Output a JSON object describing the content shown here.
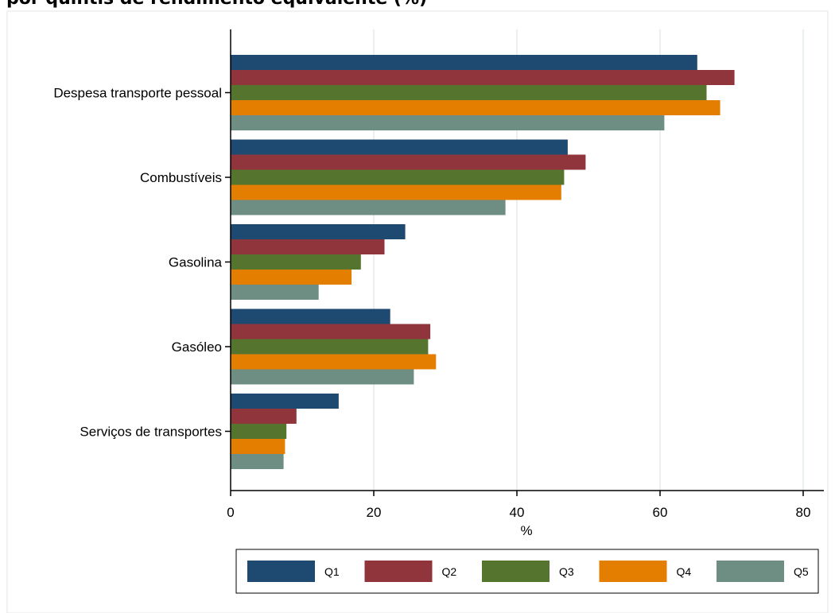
{
  "title": "por quintis de rendimento equivalente (%)",
  "chart_data": {
    "type": "bar",
    "orientation": "horizontal",
    "title": "por quintis de rendimento equivalente (%)",
    "xlabel": "%",
    "ylabel": "",
    "xlim": [
      0,
      83
    ],
    "xticks": [
      0,
      20,
      40,
      60,
      80
    ],
    "grid": true,
    "legend_position": "bottom",
    "categories": [
      "Despesa transporte pessoal",
      "Combustíveis",
      "Gasolina",
      "Gasóleo",
      "Serviços de transportes"
    ],
    "series": [
      {
        "name": "Q1",
        "color": "#1e4a72",
        "values": [
          65.2,
          47.1,
          24.4,
          22.3,
          15.1
        ]
      },
      {
        "name": "Q2",
        "color": "#90353b",
        "values": [
          70.4,
          49.6,
          21.5,
          27.9,
          9.2
        ]
      },
      {
        "name": "Q3",
        "color": "#55752f",
        "values": [
          66.5,
          46.6,
          18.2,
          27.6,
          7.8
        ]
      },
      {
        "name": "Q4",
        "color": "#e37e00",
        "values": [
          68.4,
          46.2,
          16.9,
          28.7,
          7.6
        ]
      },
      {
        "name": "Q5",
        "color": "#6e8e84",
        "values": [
          60.6,
          38.4,
          12.3,
          25.6,
          7.4
        ]
      }
    ]
  }
}
